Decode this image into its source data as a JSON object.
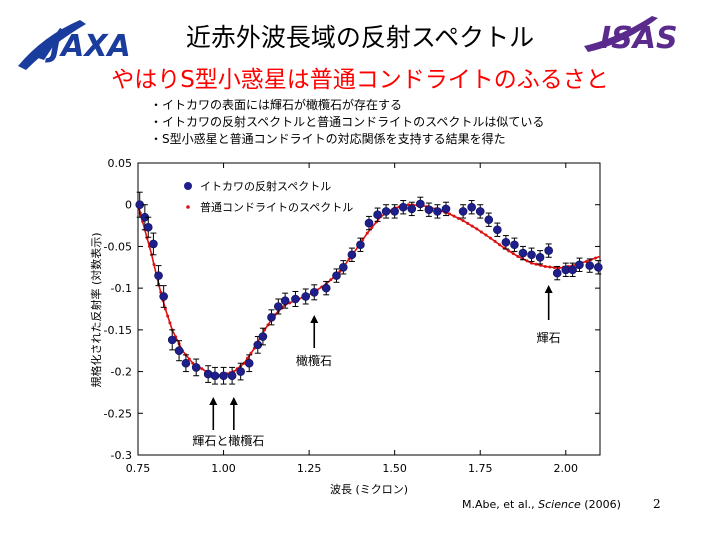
{
  "slide": {
    "title": "近赤外波長域の反射スペクトル",
    "subtitle": "やはりS型小惑星は普通コンドライトのふるさと",
    "bullets": [
      "・イトカワの表面には輝石が橄欖石が存在する",
      "・イトカワの反射スペクトルと普通コンドライトのスペクトルは似ている",
      "・S型小惑星と普通コンドライトの対応関係を支持する結果を得た"
    ],
    "citation_author": "M.Abe, et al., ",
    "citation_journal": "Science",
    "citation_year": " (2006)",
    "page_number": "2",
    "left_logo_text": "JAXA",
    "right_logo_text": "ISAS",
    "colors": {
      "title": "#000000",
      "subtitle": "#ff0000",
      "logo_blue": "#1a3c9c",
      "logo_purple": "#5a2a8c"
    }
  },
  "chart_data": {
    "type": "scatter",
    "xlabel": "波長 (ミクロン)",
    "ylabel": "規格化された反射率 (対数表示)",
    "xlim": [
      0.75,
      2.1
    ],
    "ylim": [
      -0.3,
      0.05
    ],
    "xticks": [
      0.75,
      1.0,
      1.25,
      1.5,
      1.75,
      2.0
    ],
    "xtick_labels": [
      "0.75",
      "1.00",
      "1.25",
      "1.50",
      "1.75",
      "2.00"
    ],
    "yticks": [
      0.05,
      0,
      -0.05,
      -0.1,
      -0.15,
      -0.2,
      -0.25,
      -0.3
    ],
    "ytick_labels": [
      "0.05",
      "0",
      "-0.05",
      "-0.1",
      "-0.15",
      "-0.2",
      "-0.25",
      "-0.3"
    ],
    "legend_position": "top-left",
    "series": [
      {
        "name": "イトカワの反射スペクトル",
        "color": "#1f1f8c",
        "marker": "circle-with-errorbars",
        "points": [
          [
            0.755,
            0.0,
            0.015
          ],
          [
            0.77,
            -0.015,
            0.015
          ],
          [
            0.78,
            -0.027,
            0.012
          ],
          [
            0.795,
            -0.047,
            0.013
          ],
          [
            0.81,
            -0.085,
            0.012
          ],
          [
            0.825,
            -0.11,
            0.013
          ],
          [
            0.85,
            -0.162,
            0.012
          ],
          [
            0.87,
            -0.175,
            0.012
          ],
          [
            0.89,
            -0.19,
            0.01
          ],
          [
            0.92,
            -0.195,
            0.01
          ],
          [
            0.955,
            -0.203,
            0.01
          ],
          [
            0.975,
            -0.205,
            0.01
          ],
          [
            1.0,
            -0.205,
            0.01
          ],
          [
            1.025,
            -0.205,
            0.01
          ],
          [
            1.05,
            -0.2,
            0.01
          ],
          [
            1.075,
            -0.19,
            0.01
          ],
          [
            1.1,
            -0.168,
            0.01
          ],
          [
            1.115,
            -0.158,
            0.01
          ],
          [
            1.14,
            -0.135,
            0.009
          ],
          [
            1.16,
            -0.122,
            0.009
          ],
          [
            1.18,
            -0.115,
            0.009
          ],
          [
            1.21,
            -0.113,
            0.009
          ],
          [
            1.24,
            -0.11,
            0.009
          ],
          [
            1.265,
            -0.105,
            0.009
          ],
          [
            1.3,
            -0.1,
            0.008
          ],
          [
            1.33,
            -0.085,
            0.008
          ],
          [
            1.35,
            -0.075,
            0.008
          ],
          [
            1.375,
            -0.06,
            0.008
          ],
          [
            1.4,
            -0.048,
            0.008
          ],
          [
            1.425,
            -0.022,
            0.008
          ],
          [
            1.45,
            -0.012,
            0.008
          ],
          [
            1.475,
            -0.008,
            0.008
          ],
          [
            1.5,
            -0.008,
            0.008
          ],
          [
            1.525,
            -0.003,
            0.008
          ],
          [
            1.55,
            -0.005,
            0.008
          ],
          [
            1.575,
            0.001,
            0.008
          ],
          [
            1.6,
            -0.006,
            0.008
          ],
          [
            1.625,
            -0.008,
            0.008
          ],
          [
            1.65,
            -0.005,
            0.008
          ],
          [
            1.7,
            -0.008,
            0.008
          ],
          [
            1.725,
            -0.003,
            0.008
          ],
          [
            1.75,
            -0.008,
            0.008
          ],
          [
            1.775,
            -0.018,
            0.008
          ],
          [
            1.8,
            -0.03,
            0.008
          ],
          [
            1.825,
            -0.045,
            0.008
          ],
          [
            1.85,
            -0.048,
            0.008
          ],
          [
            1.875,
            -0.058,
            0.008
          ],
          [
            1.9,
            -0.06,
            0.008
          ],
          [
            1.925,
            -0.063,
            0.008
          ],
          [
            1.95,
            -0.055,
            0.008
          ],
          [
            1.975,
            -0.082,
            0.008
          ],
          [
            2.0,
            -0.078,
            0.008
          ],
          [
            2.02,
            -0.078,
            0.008
          ],
          [
            2.04,
            -0.072,
            0.008
          ],
          [
            2.07,
            -0.073,
            0.008
          ],
          [
            2.095,
            -0.075,
            0.008
          ]
        ]
      },
      {
        "name": "普通コンドライトのスペクトル",
        "color": "#dd1111",
        "marker": "line-of-small-dots",
        "curve": [
          [
            0.75,
            0.0
          ],
          [
            0.77,
            -0.03
          ],
          [
            0.79,
            -0.06
          ],
          [
            0.81,
            -0.095
          ],
          [
            0.83,
            -0.125
          ],
          [
            0.85,
            -0.15
          ],
          [
            0.88,
            -0.175
          ],
          [
            0.91,
            -0.19
          ],
          [
            0.95,
            -0.2
          ],
          [
            0.98,
            -0.205
          ],
          [
            1.0,
            -0.204
          ],
          [
            1.03,
            -0.2
          ],
          [
            1.06,
            -0.19
          ],
          [
            1.09,
            -0.172
          ],
          [
            1.12,
            -0.15
          ],
          [
            1.15,
            -0.132
          ],
          [
            1.18,
            -0.12
          ],
          [
            1.22,
            -0.113
          ],
          [
            1.26,
            -0.106
          ],
          [
            1.3,
            -0.095
          ],
          [
            1.34,
            -0.08
          ],
          [
            1.38,
            -0.058
          ],
          [
            1.42,
            -0.034
          ],
          [
            1.46,
            -0.014
          ],
          [
            1.5,
            -0.004
          ],
          [
            1.54,
            0.0
          ],
          [
            1.58,
            -0.001
          ],
          [
            1.62,
            -0.005
          ],
          [
            1.66,
            -0.011
          ],
          [
            1.7,
            -0.019
          ],
          [
            1.74,
            -0.029
          ],
          [
            1.78,
            -0.04
          ],
          [
            1.82,
            -0.052
          ],
          [
            1.86,
            -0.062
          ],
          [
            1.9,
            -0.07
          ],
          [
            1.94,
            -0.074
          ],
          [
            1.98,
            -0.076
          ],
          [
            2.02,
            -0.073
          ],
          [
            2.06,
            -0.068
          ],
          [
            2.1,
            -0.062
          ]
        ]
      }
    ],
    "annotations": [
      {
        "text": "輝石と橄欖石",
        "x": 1.02,
        "arrows_at": [
          0.97,
          1.03
        ]
      },
      {
        "text": "橄欖石",
        "x": 1.27,
        "arrows_at": [
          1.265
        ]
      },
      {
        "text": "輝石",
        "x": 1.95,
        "arrows_at": [
          1.95
        ]
      }
    ]
  }
}
